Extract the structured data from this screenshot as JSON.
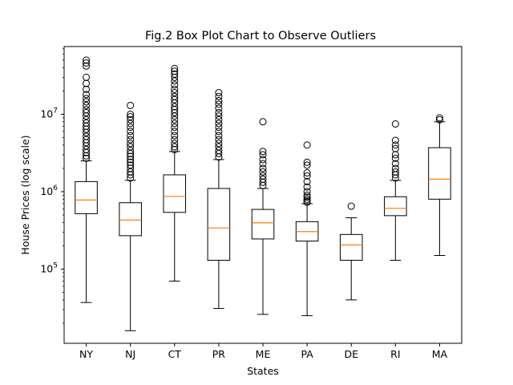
{
  "chart_data": {
    "type": "box",
    "title": "Fig.2 Box Plot Chart to Observe Outliers",
    "xlabel": "States",
    "ylabel": "House Prices (log scale)",
    "yscale": "log",
    "ylim": [
      11000,
      75000000
    ],
    "yticks": [
      {
        "value": 100000,
        "base": "10",
        "exp": "5"
      },
      {
        "value": 1000000,
        "base": "10",
        "exp": "6"
      },
      {
        "value": 10000000,
        "base": "10",
        "exp": "7"
      }
    ],
    "colors": {
      "box": "#000000",
      "median": "#ff7f0e",
      "flier": "#000000"
    },
    "categories": [
      "NY",
      "NJ",
      "CT",
      "PR",
      "ME",
      "PA",
      "DE",
      "RI",
      "MA"
    ],
    "boxes": [
      {
        "label": "NY",
        "whislo": 37000,
        "q1": 520000,
        "med": 780000,
        "q3": 1350000,
        "whishi": 2500000,
        "fliers": [
          2700000,
          2900000,
          3200000,
          3500000,
          3900000,
          4300000,
          4700000,
          5200000,
          5800000,
          6400000,
          7000000,
          7700000,
          8500000,
          9500000,
          10500000,
          11500000,
          13000000,
          14500000,
          16000000,
          18000000,
          21000000,
          25000000,
          30000000,
          42000000,
          46000000,
          50000000
        ]
      },
      {
        "label": "NJ",
        "whislo": 16000,
        "q1": 270000,
        "med": 430000,
        "q3": 720000,
        "whishi": 1400000,
        "fliers": [
          1500000,
          1650000,
          1800000,
          2000000,
          2200000,
          2400000,
          2600000,
          2850000,
          3100000,
          3400000,
          3800000,
          4200000,
          4700000,
          5300000,
          6000000,
          6800000,
          7600000,
          8500000,
          9300000,
          10000000,
          13000000
        ]
      },
      {
        "label": "CT",
        "whislo": 70000,
        "q1": 540000,
        "med": 870000,
        "q3": 1650000,
        "whishi": 3300000,
        "fliers": [
          3500000,
          3800000,
          4200000,
          4700000,
          5300000,
          6000000,
          6800000,
          7600000,
          8500000,
          9500000,
          10500000,
          11500000,
          12500000,
          14000000,
          15500000,
          17000000,
          19000000,
          21000000,
          24000000,
          27000000,
          30000000,
          33000000,
          36000000,
          39000000
        ]
      },
      {
        "label": "PR",
        "whislo": 31000,
        "q1": 130000,
        "med": 340000,
        "q3": 1100000,
        "whishi": 2600000,
        "fliers": [
          2800000,
          3100000,
          3400000,
          3800000,
          4200000,
          4700000,
          5300000,
          6000000,
          6800000,
          7600000,
          8500000,
          9500000,
          10500000,
          12000000,
          13500000,
          15000000,
          17000000,
          19000000
        ]
      },
      {
        "label": "ME",
        "whislo": 26000,
        "q1": 245000,
        "med": 395000,
        "q3": 590000,
        "whishi": 1100000,
        "fliers": [
          1200000,
          1320000,
          1450000,
          1600000,
          1800000,
          2000000,
          2300000,
          2600000,
          3000000,
          3300000,
          8000000
        ]
      },
      {
        "label": "PA",
        "whislo": 25000,
        "q1": 230000,
        "med": 305000,
        "q3": 410000,
        "whishi": 700000,
        "fliers": [
          730000,
          760000,
          800000,
          850000,
          900000,
          1000000,
          1150000,
          1350000,
          1600000,
          1750000,
          2200000,
          2400000,
          4000000
        ]
      },
      {
        "label": "DE",
        "whislo": 40000,
        "q1": 130000,
        "med": 205000,
        "q3": 280000,
        "whishi": 460000,
        "fliers": [
          650000
        ]
      },
      {
        "label": "RI",
        "whislo": 130000,
        "q1": 490000,
        "med": 610000,
        "q3": 860000,
        "whishi": 1400000,
        "fliers": [
          1500000,
          1650000,
          1800000,
          2000000,
          2300000,
          2700000,
          3000000,
          3600000,
          4000000,
          4600000,
          7500000
        ]
      },
      {
        "label": "MA",
        "whislo": 150000,
        "q1": 800000,
        "med": 1450000,
        "q3": 3700000,
        "whishi": 8000000,
        "fliers": [
          8500000,
          9000000
        ]
      }
    ]
  }
}
